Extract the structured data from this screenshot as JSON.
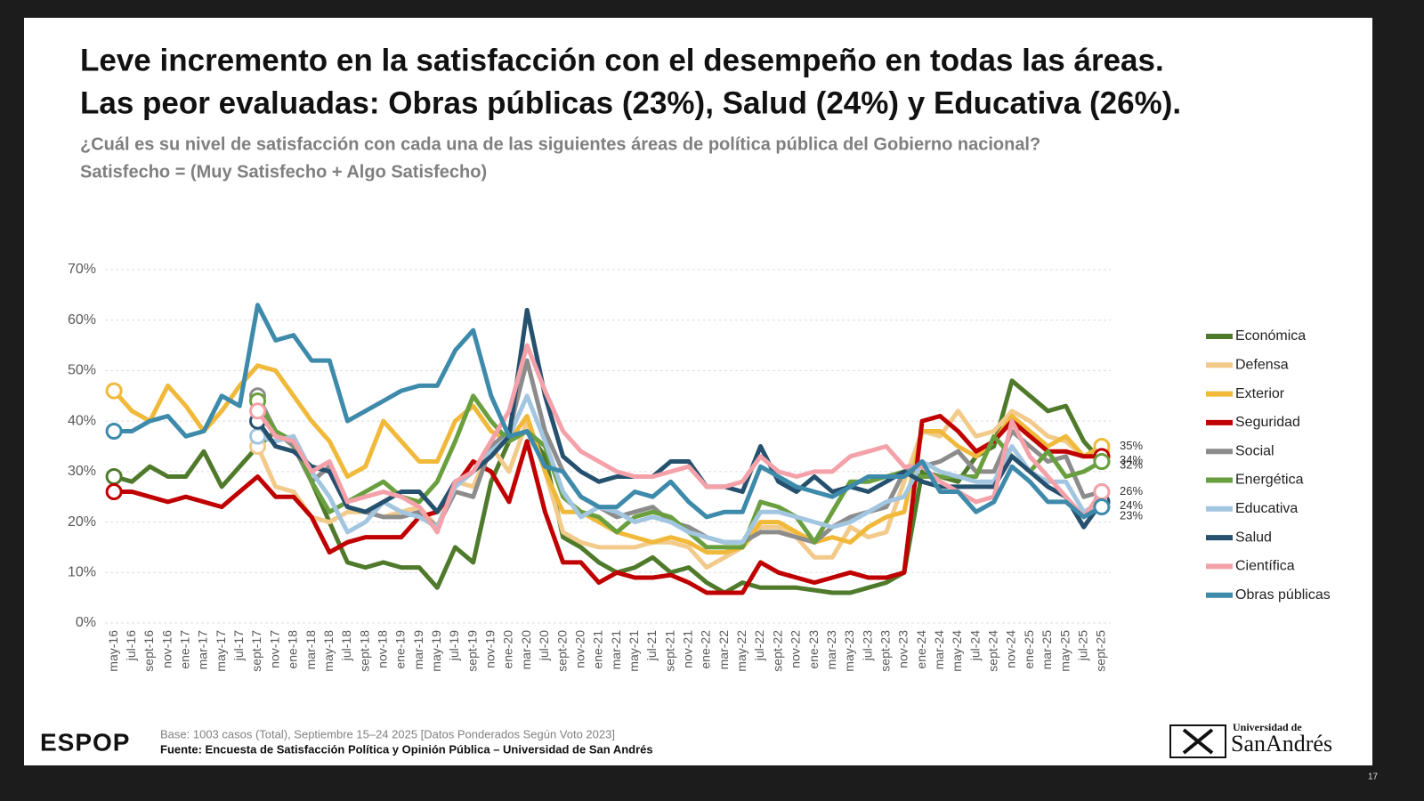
{
  "chart_data": {
    "type": "line",
    "title": [
      "Leve incremento en la satisfacción con el desempeño en todas las áreas.",
      "Las peor evaluadas: Obras públicas (23%), Salud (24%) y Educativa (26%)."
    ],
    "subtitle": [
      "¿Cuál es su nivel de satisfacción con cada una de las siguientes áreas de política pública del Gobierno nacional?",
      "Satisfecho = (Muy Satisfecho + Algo Satisfecho)"
    ],
    "categories": [
      "may-16",
      "jul-16",
      "sept-16",
      "nov-16",
      "ene-17",
      "mar-17",
      "may-17",
      "jul-17",
      "sept-17",
      "nov-17",
      "ene-18",
      "mar-18",
      "may-18",
      "jul-18",
      "sept-18",
      "nov-18",
      "ene-19",
      "mar-19",
      "may-19",
      "jul-19",
      "sept-19",
      "nov-19",
      "ene-20",
      "mar-20",
      "jul-20",
      "sept-20",
      "nov-20",
      "ene-21",
      "mar-21",
      "may-21",
      "jul-21",
      "sept-21",
      "nov-21",
      "ene-22",
      "mar-22",
      "may-22",
      "jul-22",
      "sept-22",
      "nov-22",
      "ene-23",
      "mar-23",
      "may-23",
      "jul-23",
      "sept-23",
      "nov-23",
      "ene-24",
      "mar-24",
      "may-24",
      "jul-24",
      "sept-24",
      "nov-24",
      "ene-25",
      "mar-25",
      "may-25",
      "jul-25",
      "sept-25"
    ],
    "series": [
      {
        "name": "Económica",
        "color": "#4f7a2b",
        "values": [
          29,
          28,
          31,
          29,
          29,
          34,
          27,
          31,
          35,
          38,
          35,
          28,
          20,
          12,
          11,
          12,
          11,
          11,
          7,
          15,
          12,
          28,
          36,
          38,
          33,
          17,
          15,
          12,
          10,
          11,
          13,
          10,
          11,
          8,
          6,
          8,
          7,
          7,
          7,
          6.5,
          6,
          6,
          7,
          8,
          10,
          30,
          29,
          28,
          33,
          35,
          48,
          45,
          42,
          43,
          36,
          32
        ]
      },
      {
        "name": "Defensa",
        "color": "#f2ca8a",
        "values": [
          null,
          null,
          null,
          null,
          null,
          null,
          null,
          null,
          35,
          27,
          26,
          21,
          20,
          22,
          22,
          21,
          22,
          23,
          19,
          28,
          27,
          35,
          30,
          40,
          30,
          18,
          16,
          15,
          15,
          15,
          16,
          16,
          15,
          11,
          13,
          15,
          19,
          19,
          17,
          13,
          13,
          19,
          17,
          18,
          28,
          38,
          37,
          42,
          37,
          38,
          42,
          40,
          37,
          36,
          33,
          34
        ]
      },
      {
        "name": "Exterior",
        "color": "#f0b93a",
        "values": [
          46,
          42,
          40,
          47,
          43,
          38,
          42,
          47,
          51,
          50,
          45,
          40,
          36,
          29,
          31,
          40,
          36,
          32,
          32,
          40,
          43,
          38,
          36,
          41,
          30,
          22,
          22,
          20,
          18,
          17,
          16,
          17,
          16,
          14,
          14,
          15,
          20,
          20,
          18,
          16,
          17,
          16,
          19,
          21,
          22,
          38,
          38,
          35,
          33,
          36,
          41,
          38,
          35,
          37,
          33,
          35
        ]
      },
      {
        "name": "Seguridad",
        "color": "#c00000",
        "values": [
          26,
          26,
          25,
          24,
          25,
          24,
          23,
          26,
          29,
          25,
          25,
          21,
          14,
          16,
          17,
          17,
          17,
          21,
          22,
          27,
          32,
          30,
          24,
          36,
          22,
          12,
          12,
          8,
          10,
          9,
          9,
          9.5,
          8,
          6,
          6,
          6,
          12,
          10,
          9,
          8,
          9,
          10,
          9,
          9,
          10,
          40,
          41,
          38,
          34,
          36,
          40,
          37,
          34,
          34,
          33,
          33
        ]
      },
      {
        "name": "Social",
        "color": "#8c8c8c",
        "values": [
          null,
          null,
          null,
          null,
          null,
          null,
          null,
          null,
          45,
          38,
          35,
          28,
          31,
          23,
          22,
          21,
          21,
          22,
          19,
          26,
          25,
          35,
          38,
          52,
          38,
          30,
          25,
          23,
          21,
          22,
          23,
          20,
          19,
          17,
          16,
          16,
          18,
          18,
          17,
          16,
          19,
          21,
          22,
          23,
          30,
          31,
          32,
          34,
          30,
          30,
          38,
          35,
          32,
          33,
          25,
          26
        ]
      },
      {
        "name": "Energética",
        "color": "#6a9f3f",
        "values": [
          null,
          null,
          null,
          null,
          null,
          null,
          null,
          null,
          44,
          38,
          36,
          28,
          22,
          24,
          26,
          28,
          25,
          24,
          28,
          36,
          45,
          40,
          36,
          38,
          35,
          25,
          22,
          21,
          18,
          21,
          22,
          21,
          18,
          15,
          15,
          15,
          24,
          23,
          21,
          16,
          22,
          28,
          28,
          29,
          30,
          29,
          29,
          29,
          29,
          37,
          33,
          30,
          34,
          29,
          30,
          32
        ]
      },
      {
        "name": "Educativa",
        "color": "#a3c6e0",
        "values": [
          null,
          null,
          null,
          null,
          null,
          null,
          null,
          null,
          37,
          36,
          37,
          30,
          25,
          18,
          20,
          24,
          22,
          21,
          19,
          27,
          30,
          34,
          37,
          45,
          36,
          26,
          21,
          23,
          22,
          20,
          21,
          20,
          18,
          17,
          16,
          16,
          22,
          22,
          21,
          20,
          19,
          20,
          22,
          24,
          25,
          32,
          30,
          29,
          28,
          28,
          35,
          30,
          28,
          28,
          22,
          24
        ]
      },
      {
        "name": "Salud",
        "color": "#25506e",
        "values": [
          null,
          null,
          null,
          null,
          null,
          null,
          null,
          null,
          40,
          35,
          34,
          31,
          30,
          23,
          22,
          24,
          26,
          26,
          22,
          28,
          30,
          33,
          37,
          62,
          45,
          33,
          30,
          28,
          29,
          29,
          29,
          32,
          32,
          27,
          27,
          26,
          35,
          28,
          26,
          29,
          26,
          27,
          26,
          28,
          30,
          28,
          27,
          27,
          27,
          27,
          33,
          30,
          27,
          25,
          19,
          24
        ]
      },
      {
        "name": "Científica",
        "color": "#f4a1a9",
        "values": [
          null,
          null,
          null,
          null,
          null,
          null,
          null,
          null,
          42,
          37,
          36,
          30,
          32,
          24,
          25,
          26,
          25,
          23,
          18,
          28,
          30,
          36,
          42,
          55,
          46,
          38,
          34,
          32,
          30,
          29,
          29,
          30,
          31,
          27,
          27,
          28,
          33,
          30,
          29,
          30,
          30,
          33,
          34,
          35,
          31,
          31,
          28,
          26,
          24,
          25,
          40,
          33,
          29,
          25,
          21,
          26
        ]
      },
      {
        "name": "Obras públicas",
        "color": "#3d8aab",
        "values": [
          38,
          38,
          40,
          41,
          37,
          38,
          45,
          43,
          63,
          56,
          57,
          52,
          52,
          40,
          42,
          44,
          46,
          47,
          47,
          54,
          58,
          45,
          37,
          38,
          31,
          30,
          25,
          23,
          23,
          26,
          25,
          28,
          24,
          21,
          22,
          22,
          31,
          29,
          27,
          26,
          25,
          27,
          29,
          29,
          29,
          32,
          26,
          26,
          22,
          24,
          31,
          28,
          24,
          24,
          21,
          23
        ]
      }
    ],
    "ylim": [
      0,
      70
    ],
    "yticks": [
      {
        "value": 0,
        "label": "0%"
      },
      {
        "value": 10,
        "label": "10%"
      },
      {
        "value": 20,
        "label": "20%"
      },
      {
        "value": 30,
        "label": "30%"
      },
      {
        "value": 40,
        "label": "40%"
      },
      {
        "value": 50,
        "label": "50%"
      },
      {
        "value": 60,
        "label": "60%"
      },
      {
        "value": 70,
        "label": "70%"
      }
    ],
    "grid": true,
    "legend": "right",
    "end_labels": [
      {
        "value": 35,
        "label": "35%"
      },
      {
        "value": 34,
        "label": "34%"
      },
      {
        "value": 32,
        "label": "32%"
      },
      {
        "value": 26,
        "label": "26%"
      },
      {
        "value": 24,
        "label": "24%"
      },
      {
        "value": 23,
        "label": "23%"
      }
    ]
  },
  "footer": {
    "logo": "ESPOP",
    "base": "Base: 1003 casos (Total), Septiembre 15–24 2025 [Datos Ponderados Según Voto 2023]",
    "source": "Fuente: Encuesta de Satisfacción Política y Opinión Pública – Universidad de San Andrés",
    "university_top": "Universidad de",
    "university_name": "SanAndrés",
    "page_number": "17"
  }
}
